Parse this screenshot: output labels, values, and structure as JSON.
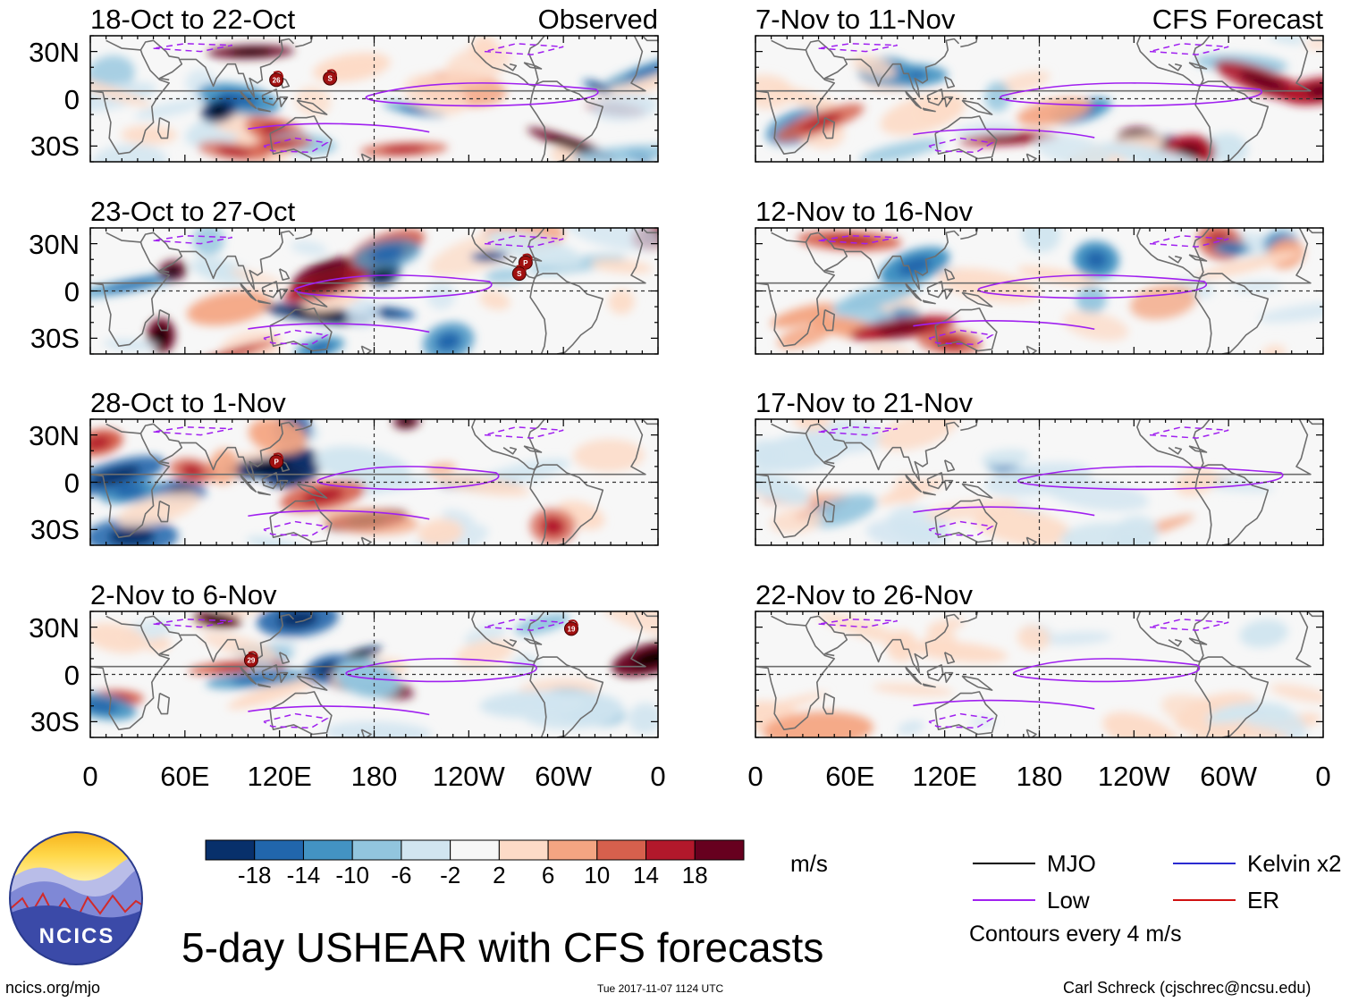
{
  "chart_data": {
    "type": "heatmap",
    "title": "5-day USHEAR with CFS forecasts",
    "units": "m/s",
    "x_ticks": [
      "0",
      "60E",
      "120E",
      "180",
      "120W",
      "60W",
      "0"
    ],
    "y_ticks": [
      "30N",
      "0",
      "30S"
    ],
    "lat_range": [
      -40,
      40
    ],
    "lon_range": [
      0,
      360
    ],
    "panels": [
      {
        "title": "18-Oct to 22-Oct",
        "tag": "Observed",
        "seed": 11,
        "amp": 1.0,
        "storms": [
          {
            "label": "26",
            "lon": 118,
            "lat": 12
          },
          {
            "label": "S",
            "lon": 152,
            "lat": 13
          }
        ]
      },
      {
        "title": "23-Oct to 27-Oct",
        "tag": "",
        "seed": 23,
        "amp": 1.0,
        "storms": [
          {
            "label": "P",
            "lon": 276,
            "lat": 18
          },
          {
            "label": "S",
            "lon": 272,
            "lat": 11
          }
        ]
      },
      {
        "title": "28-Oct to 1-Nov",
        "tag": "",
        "seed": 37,
        "amp": 0.95,
        "storms": [
          {
            "label": "P",
            "lon": 118,
            "lat": 13
          }
        ]
      },
      {
        "title": "2-Nov to 6-Nov",
        "tag": "",
        "seed": 41,
        "amp": 1.0,
        "storms": [
          {
            "label": "29",
            "lon": 102,
            "lat": 9
          },
          {
            "label": "19",
            "lon": 305,
            "lat": 29
          }
        ]
      },
      {
        "title": "7-Nov to 11-Nov",
        "tag": "CFS Forecast",
        "seed": 53,
        "amp": 0.9,
        "storms": []
      },
      {
        "title": "12-Nov to 16-Nov",
        "tag": "",
        "seed": 67,
        "amp": 0.8,
        "storms": []
      },
      {
        "title": "17-Nov to 21-Nov",
        "tag": "",
        "seed": 79,
        "amp": 0.6,
        "storms": []
      },
      {
        "title": "22-Nov to 26-Nov",
        "tag": "",
        "seed": 97,
        "amp": 0.4,
        "storms": []
      }
    ],
    "colorbar": {
      "levels": [
        "-18",
        "-14",
        "-10",
        "-6",
        "-2",
        "2",
        "6",
        "10",
        "14",
        "18"
      ],
      "colors": [
        "#08306b",
        "#2166ac",
        "#4393c3",
        "#92c5de",
        "#d1e5f0",
        "#f7f7f7",
        "#fddbc7",
        "#f4a582",
        "#d6604d",
        "#b2182b",
        "#67001f"
      ]
    },
    "legend": [
      {
        "label": "MJO",
        "color": "#000000"
      },
      {
        "label": "Kelvin x2",
        "color": "#2b2bd0"
      },
      {
        "label": "Low",
        "color": "#a020f0"
      },
      {
        "label": "ER",
        "color": "#d01010"
      }
    ],
    "contour_note": "Contours every 4 m/s"
  },
  "logo_text": "NCICS",
  "footer": {
    "left": "ncics.org/mjo",
    "center": "Tue 2017-11-07 1124 UTC",
    "right": "Carl Schreck (cjschrec@ncsu.edu)"
  }
}
